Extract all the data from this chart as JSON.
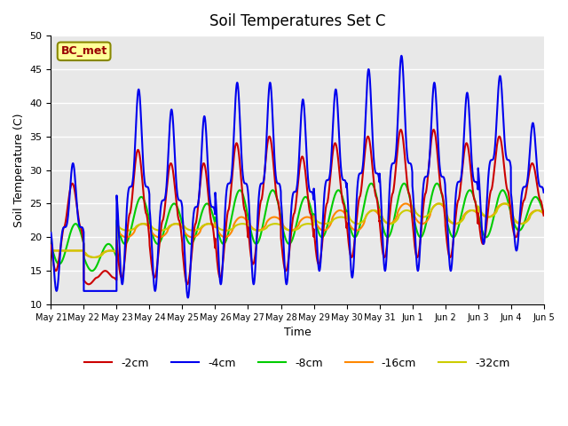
{
  "title": "Soil Temperatures Set C",
  "xlabel": "Time",
  "ylabel": "Soil Temperature (C)",
  "ylim": [
    10,
    50
  ],
  "background_color": "#e8e8e8",
  "grid_color": "white",
  "series_colors": {
    "-2cm": "#cc0000",
    "-4cm": "#0000ee",
    "-8cm": "#00cc00",
    "-16cm": "#ff8800",
    "-32cm": "#cccc00"
  },
  "annotation_text": "BC_met",
  "annotation_bg": "#ffff99",
  "annotation_border": "#888800",
  "annotation_text_color": "#990000",
  "x_tick_labels": [
    "May 21",
    "May 22",
    "May 23",
    "May 24",
    "May 25",
    "May 26",
    "May 27",
    "May 28",
    "May 29",
    "May 30",
    "May 31",
    "Jun 1",
    "Jun 2",
    "Jun 3",
    "Jun 4",
    "Jun 5"
  ],
  "legend_labels": [
    "-2cm",
    "-4cm",
    "-8cm",
    "-16cm",
    "-32cm"
  ],
  "line_width": 1.5
}
